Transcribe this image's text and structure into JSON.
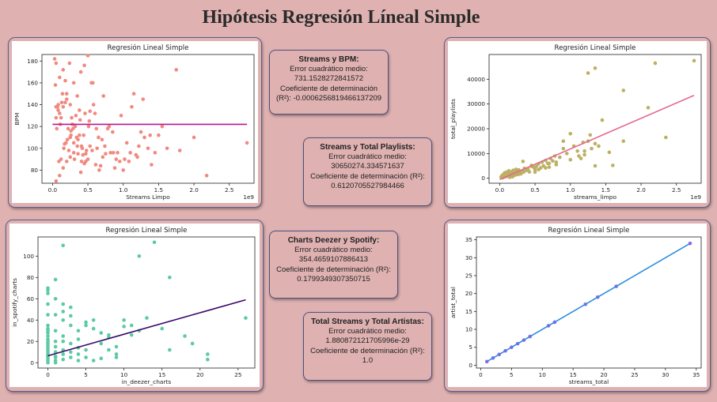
{
  "page": {
    "title": "Hipótesis Regresión Líneal Simple"
  },
  "stats": [
    {
      "title": "Streams y BPM:",
      "mse_label": "Error cuadrático medio:",
      "mse": "731.1528272841572",
      "r2_label": "Coeficiente de determinación",
      "r2_value": "(R²): -0.0006256819466137209"
    },
    {
      "title": "Streams y Total Playlists:",
      "mse_label": "Error cuadrático medio:",
      "mse": "30650274.334571637",
      "r2_label": "Coeficiente de determinación (R²):",
      "r2_value": "0.6120705527984466"
    },
    {
      "title": "Charts Deezer y Spotify:",
      "mse_label": "Error cuadrático medio:",
      "mse": "354.4659107886413",
      "r2_label": "Coeficiente de determinación (R²):",
      "r2_value": "0.1799349307350715"
    },
    {
      "title": "Total Streams y Total Artistas:",
      "mse_label": "Error cuadrático medio:",
      "mse": "1.880872121705996e-29",
      "r2_label": "Coeficiente de determinación (R²):",
      "r2_value": "1.0"
    }
  ],
  "chart_data": [
    {
      "type": "scatter",
      "title": "Regresión Lineal Simple",
      "xlabel": "Streams Limpo",
      "ylabel": "BPM",
      "x_offset_label": "1e9",
      "xlim": [
        -0.15,
        2.85
      ],
      "ylim": [
        68,
        186
      ],
      "xticks": [
        0.0,
        0.5,
        1.0,
        1.5,
        2.0,
        2.5
      ],
      "xtick_labels": [
        "0.0",
        "0.5",
        "1.0",
        "1.5",
        "2.0",
        "2.5"
      ],
      "yticks": [
        80,
        100,
        120,
        140,
        160,
        180
      ],
      "point_color": "#f08a80",
      "line_color": "#b8168f",
      "line": {
        "x": [
          0.0,
          2.75
        ],
        "y": [
          122,
          122
        ]
      },
      "x": [
        0.05,
        0.1,
        0.15,
        0.2,
        0.25,
        0.3,
        0.35,
        0.4,
        0.45,
        0.5,
        0.55,
        0.6,
        0.08,
        0.12,
        0.18,
        0.22,
        0.28,
        0.33,
        0.38,
        0.42,
        0.48,
        0.52,
        0.58,
        0.65,
        0.7,
        0.75,
        0.8,
        0.85,
        0.9,
        0.95,
        1.0,
        1.05,
        1.1,
        1.15,
        1.2,
        1.25,
        1.3,
        1.35,
        1.4,
        0.05,
        0.1,
        0.15,
        0.2,
        0.25,
        0.3,
        0.35,
        0.4,
        0.45,
        0.5,
        0.05,
        0.1,
        0.15,
        0.2,
        0.25,
        0.3,
        0.06,
        0.11,
        0.16,
        0.21,
        0.26,
        0.31,
        0.36,
        0.41,
        0.46,
        0.51,
        0.56,
        0.61,
        0.66,
        0.71,
        0.07,
        0.13,
        0.19,
        0.23,
        0.29,
        0.34,
        0.39,
        0.43,
        0.47,
        0.53,
        0.57,
        0.63,
        0.68,
        0.74,
        0.78,
        0.82,
        0.88,
        0.92,
        0.97,
        1.02,
        1.08,
        1.12,
        1.18,
        1.22,
        1.28,
        1.45,
        1.5,
        1.55,
        1.62,
        1.75,
        1.8,
        2.0,
        2.18,
        2.75,
        0.18,
        0.24,
        0.47,
        0.53,
        0.05,
        0.08,
        0.03,
        0.09,
        0.14,
        0.27,
        0.32,
        0.38,
        0.44,
        0.72,
        0.86,
        1.38,
        0.62,
        0.04,
        0.12,
        0.17,
        0.26,
        0.36,
        0.41
      ],
      "y": [
        178,
        165,
        172,
        150,
        140,
        160,
        148,
        170,
        176,
        185,
        160,
        132,
        135,
        128,
        142,
        118,
        122,
        130,
        112,
        100,
        98,
        125,
        140,
        110,
        108,
        95,
        120,
        115,
        90,
        88,
        80,
        105,
        96,
        150,
        92,
        115,
        110,
        100,
        85,
        70,
        75,
        82,
        88,
        92,
        96,
        102,
        78,
        86,
        90,
        128,
        132,
        138,
        145,
        110,
        105,
        118,
        122,
        100,
        108,
        112,
        90,
        95,
        102,
        132,
        120,
        98,
        85,
        80,
        92,
        138,
        142,
        105,
        98,
        118,
        110,
        126,
        94,
        88,
        134,
        160,
        100,
        84,
        102,
        118,
        96,
        82,
        96,
        130,
        90,
        88,
        138,
        94,
        102,
        145,
        96,
        112,
        120,
        100,
        172,
        98,
        110,
        75,
        105,
        162,
        178,
        95,
        102,
        138,
        140,
        182,
        88,
        150,
        128,
        120,
        135,
        112,
        148,
        96,
        112,
        118,
        158,
        90,
        104,
        116,
        108,
        88
      ]
    },
    {
      "type": "scatter",
      "title": "Regresión Lineal Simple",
      "xlabel": "streams_limpo",
      "ylabel": "total_playlists",
      "x_offset_label": "1e9",
      "xlim": [
        -0.15,
        2.85
      ],
      "ylim": [
        -2000,
        50000
      ],
      "xticks": [
        0.0,
        0.5,
        1.0,
        1.5,
        2.0,
        2.5
      ],
      "xtick_labels": [
        "0.0",
        "0.5",
        "1.0",
        "1.5",
        "2.0",
        "2.5"
      ],
      "yticks": [
        0,
        10000,
        20000,
        30000,
        40000
      ],
      "point_color": "#bdb064",
      "line_color": "#e36a8e",
      "line": {
        "x": [
          0.0,
          2.75
        ],
        "y": [
          -500,
          33500
        ]
      },
      "x": [
        0.02,
        0.03,
        0.04,
        0.05,
        0.06,
        0.07,
        0.08,
        0.09,
        0.1,
        0.11,
        0.12,
        0.13,
        0.14,
        0.15,
        0.16,
        0.17,
        0.18,
        0.19,
        0.2,
        0.21,
        0.22,
        0.23,
        0.24,
        0.25,
        0.26,
        0.27,
        0.28,
        0.29,
        0.3,
        0.32,
        0.34,
        0.35,
        0.38,
        0.4,
        0.42,
        0.45,
        0.48,
        0.5,
        0.52,
        0.55,
        0.58,
        0.6,
        0.62,
        0.65,
        0.68,
        0.7,
        0.72,
        0.75,
        0.78,
        0.8,
        0.85,
        0.9,
        0.95,
        1.0,
        1.05,
        1.1,
        1.15,
        1.2,
        1.25,
        1.3,
        1.35,
        1.4,
        0.55,
        0.65,
        0.7,
        0.8,
        0.9,
        1.0,
        1.12,
        1.18,
        1.2,
        1.28,
        1.35,
        1.55,
        1.6,
        1.45,
        1.75,
        1.75,
        2.1,
        2.2,
        2.35,
        2.75,
        1.25,
        1.35,
        0.45,
        0.33,
        0.5,
        0.06,
        0.09,
        0.12,
        0.15,
        0.18,
        0.21,
        0.24
      ],
      "y": [
        500,
        1000,
        200,
        1500,
        800,
        2200,
        600,
        1200,
        2500,
        900,
        1800,
        3000,
        400,
        1500,
        2000,
        2600,
        1000,
        3200,
        1800,
        2400,
        1400,
        3600,
        2000,
        2800,
        1500,
        3400,
        2200,
        2600,
        1800,
        3000,
        2500,
        4000,
        3200,
        3800,
        2600,
        5200,
        4500,
        3600,
        4800,
        5800,
        4200,
        6500,
        5000,
        7200,
        6000,
        4500,
        8000,
        7000,
        9000,
        6500,
        8500,
        12000,
        10000,
        7500,
        13000,
        11000,
        8000,
        9500,
        15000,
        12000,
        14000,
        13000,
        3500,
        4200,
        6000,
        5500,
        15000,
        18000,
        9000,
        14500,
        11000,
        17500,
        5000,
        10500,
        5200,
        23500,
        15000,
        35500,
        28500,
        46500,
        16500,
        47500,
        42500,
        44500,
        4800,
        6800,
        2500,
        500,
        800,
        1500,
        2200,
        600,
        1200,
        1700
      ]
    },
    {
      "type": "scatter",
      "title": "Regresión Lineal Simple",
      "xlabel": "in_deezer_charts",
      "ylabel": "in_spotify_charts",
      "xlim": [
        -1.3,
        27.2
      ],
      "ylim": [
        -5,
        118
      ],
      "xticks": [
        0,
        5,
        10,
        15,
        20,
        25
      ],
      "xtick_labels": [
        "0",
        "5",
        "10",
        "15",
        "20",
        "25"
      ],
      "yticks": [
        0,
        20,
        40,
        60,
        80,
        100
      ],
      "point_color": "#5ccaa2",
      "line_color": "#3a0a6a",
      "line": {
        "x": [
          0,
          26
        ],
        "y": [
          6.5,
          59
        ]
      },
      "x": [
        0,
        0,
        0,
        0,
        0,
        0,
        0,
        0,
        0,
        0,
        0,
        0,
        0,
        0,
        0,
        0,
        0,
        0,
        0,
        0,
        1,
        1,
        1,
        1,
        1,
        1,
        1,
        1,
        1,
        1,
        2,
        2,
        2,
        2,
        2,
        2,
        2,
        2,
        3,
        3,
        3,
        3,
        3,
        3,
        4,
        4,
        4,
        4,
        4,
        5,
        5,
        5,
        5,
        6,
        6,
        6,
        7,
        7,
        7,
        8,
        8,
        8,
        9,
        9,
        9,
        10,
        10,
        11,
        11,
        12,
        12,
        13,
        14,
        15,
        16,
        16,
        18,
        19,
        21,
        21,
        26,
        1,
        2,
        0,
        0
      ],
      "y": [
        0,
        2,
        4,
        6,
        8,
        10,
        12,
        14,
        16,
        18,
        20,
        22,
        25,
        28,
        30,
        32,
        35,
        55,
        68,
        70,
        0,
        2,
        5,
        10,
        15,
        20,
        30,
        45,
        60,
        78,
        3,
        8,
        12,
        20,
        25,
        40,
        48,
        110,
        5,
        10,
        18,
        35,
        44,
        52,
        2,
        8,
        14,
        22,
        30,
        5,
        12,
        35,
        38,
        2,
        32,
        40,
        4,
        18,
        28,
        12,
        24,
        26,
        5,
        8,
        15,
        34,
        40,
        35,
        26,
        30,
        100,
        42,
        113,
        32,
        12,
        80,
        25,
        18,
        3,
        8,
        42,
        6,
        55,
        65,
        45
      ]
    },
    {
      "type": "scatter",
      "title": "Regresión Lineal Simple",
      "xlabel": "streams_total",
      "ylabel": "artist_total",
      "xlim": [
        -0.7,
        35.8
      ],
      "ylim": [
        -0.8,
        35.8
      ],
      "xticks": [
        0,
        5,
        10,
        15,
        20,
        25,
        30,
        35
      ],
      "xtick_labels": [
        "0",
        "5",
        "10",
        "15",
        "20",
        "25",
        "30",
        "35"
      ],
      "yticks": [
        0,
        5,
        10,
        15,
        20,
        25,
        30,
        35
      ],
      "point_color": "#a35cf0",
      "line_color": "#2e8ee0",
      "line": {
        "x": [
          1,
          34
        ],
        "y": [
          1,
          34
        ]
      },
      "x": [
        1,
        2,
        3,
        4,
        5,
        6,
        7,
        8,
        11,
        12,
        17,
        19,
        22,
        34
      ],
      "y": [
        1,
        2,
        3,
        4,
        5,
        6,
        7,
        8,
        11,
        12,
        17,
        19,
        22,
        34
      ]
    }
  ]
}
